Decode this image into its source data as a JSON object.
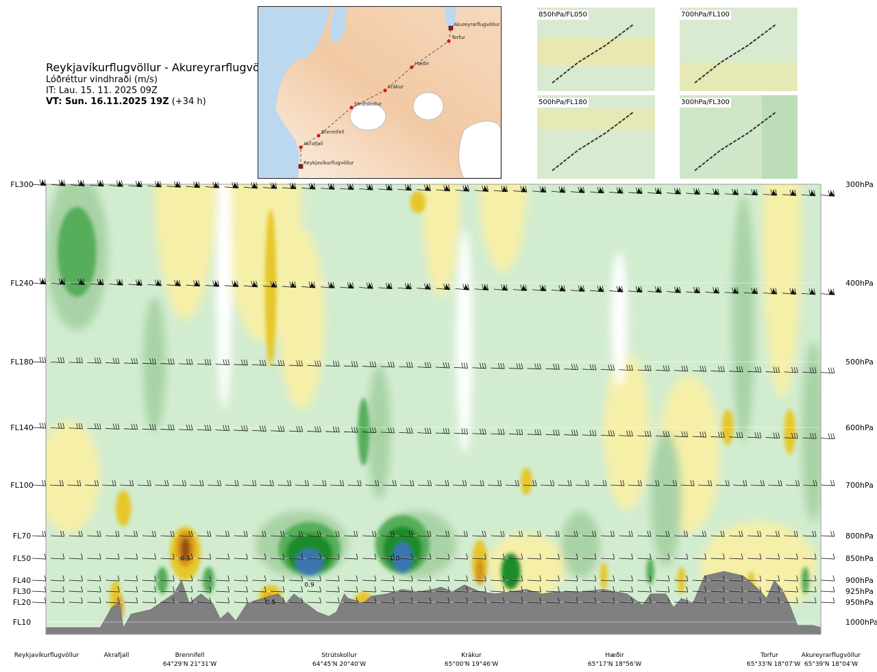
{
  "header": {
    "route": "Reykjavíkurflugvöllur - Akureyrarflugvöllur",
    "parameter": "Lóðréttur vindhraði (m/s)",
    "issue_time": "IT: Lau. 15. 11. 2025 09Z",
    "valid_prefix": "VT: Sun. 16.11.2025 19Z",
    "valid_suffix": "(+34 h)"
  },
  "route_map": {
    "points": [
      "Reykjavíkurflugvöllur",
      "Akrafjall",
      "Brennifell",
      "Strútskollur",
      "Krákur",
      "Hæðir",
      "Torfur",
      "Akureyrarflugvöllur"
    ]
  },
  "mini_maps": [
    {
      "label": "850hPa/FL050"
    },
    {
      "label": "700hPa/FL100"
    },
    {
      "label": "500hPa/FL180"
    },
    {
      "label": "300hPa/FL300"
    }
  ],
  "chart_data": {
    "type": "heatmap",
    "title": "Lóðréttur vindhraði (m/s)",
    "y_left_ticks": [
      "FL300",
      "FL240",
      "FL180",
      "FL140",
      "FL100",
      "FL70",
      "FL50",
      "FL40",
      "FL30",
      "FL20",
      "FL10"
    ],
    "y_right_ticks": [
      "300hPa",
      "400hPa",
      "500hPa",
      "600hPa",
      "700hPa",
      "800hPa",
      "850hPa",
      "900hPa",
      "925hPa",
      "950hPa",
      "1000hPa"
    ],
    "pressure_levels_hpa": [
      300,
      400,
      500,
      600,
      700,
      800,
      850,
      900,
      925,
      950,
      1000
    ],
    "stations": [
      {
        "name": "Reykjavíkurflugvöllur",
        "coord": "",
        "pos": 0.0
      },
      {
        "name": "Akrafjall",
        "coord": "",
        "pos": 0.09
      },
      {
        "name": "Brennifell",
        "coord": "64°29'N 21°31'W",
        "pos": 0.19
      },
      {
        "name": "Strútskollur",
        "coord": "64°45'N 20°40'W",
        "pos": 0.38
      },
      {
        "name": "Krákur",
        "coord": "65°00'N 19°46'W",
        "pos": 0.56
      },
      {
        "name": "Hæðir",
        "coord": "65°17'N 18°56'W",
        "pos": 0.74
      },
      {
        "name": "Torfur",
        "coord": "65°33'N 18°07'W",
        "pos": 0.95
      },
      {
        "name": "Akureyrarflugvöllur",
        "coord": "65°39'N 18°04'W",
        "pos": 1.0
      }
    ],
    "contour_labels": [
      {
        "text": "0.5",
        "pos": 0.18,
        "level_hpa": 850
      },
      {
        "text": "1.0",
        "pos": 0.45,
        "level_hpa": 850
      },
      {
        "text": "0.9",
        "pos": 0.34,
        "level_hpa": 910
      },
      {
        "text": "0.5",
        "pos": 0.29,
        "level_hpa": 950
      }
    ],
    "color_scale": {
      "strong_up": "#3a75b0",
      "up_3": "#1f8b2c",
      "up_2": "#57ad5a",
      "up_1": "#a9d3a6",
      "weak": "#d2ecd0",
      "zero": "#ffffff",
      "down_1": "#f5efa8",
      "down_2": "#e6c72a",
      "down_3": "#d8941c",
      "strong_down": "#9b4a14",
      "terrain": "#808080"
    },
    "grid": true,
    "legend": "none"
  }
}
